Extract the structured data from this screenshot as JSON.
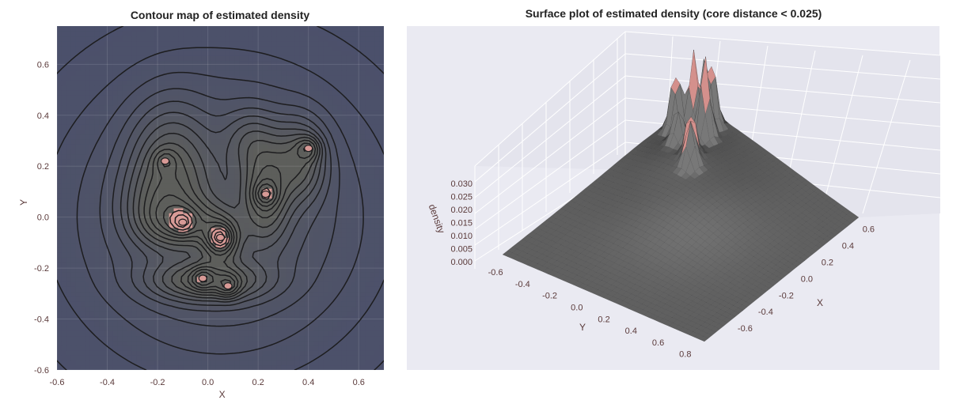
{
  "chart_data": [
    {
      "type": "contour",
      "title": "Contour map of estimated density",
      "xlabel": "X",
      "ylabel": "Y",
      "xlim": [
        -0.6,
        0.7
      ],
      "ylim": [
        -0.6,
        0.75
      ],
      "xticks": [
        "-0.6",
        "-0.4",
        "-0.2",
        "0.0",
        "0.2",
        "0.4",
        "0.6"
      ],
      "xtick_values": [
        -0.6,
        -0.4,
        -0.2,
        0.0,
        0.2,
        0.4,
        0.6
      ],
      "yticks": [
        "-0.6",
        "-0.4",
        "-0.2",
        "0.0",
        "0.2",
        "0.4",
        "0.6"
      ],
      "ytick_values": [
        -0.6,
        -0.4,
        -0.2,
        0.0,
        0.2,
        0.4,
        0.6
      ],
      "grid": true,
      "colors": {
        "background": "#4b506b",
        "core": "#5d5e5b",
        "peak": "#d89a96",
        "line": "#1d1d1f"
      },
      "density_peaks": [
        {
          "x": -0.17,
          "y": 0.22,
          "density": 0.018
        },
        {
          "x": -0.1,
          "y": -0.02,
          "density": 0.027
        },
        {
          "x": 0.05,
          "y": -0.08,
          "density": 0.03
        },
        {
          "x": -0.02,
          "y": -0.24,
          "density": 0.028
        },
        {
          "x": 0.08,
          "y": -0.27,
          "density": 0.027
        },
        {
          "x": 0.23,
          "y": 0.09,
          "density": 0.029
        },
        {
          "x": 0.4,
          "y": 0.27,
          "density": 0.028
        }
      ]
    },
    {
      "type": "surface",
      "title": "Surface plot of estimated density (core distance < 0.025)",
      "xlabel": "X",
      "ylabel": "Y",
      "zlabel": "density",
      "xticks": [
        "-0.6",
        "-0.4",
        "-0.2",
        "0.0",
        "0.2",
        "0.4",
        "0.6"
      ],
      "xtick_values": [
        -0.6,
        -0.4,
        -0.2,
        0.0,
        0.2,
        0.4,
        0.6
      ],
      "yticks": [
        "-0.6",
        "-0.4",
        "-0.2",
        "0.0",
        "0.2",
        "0.4",
        "0.6",
        "0.8"
      ],
      "ytick_values": [
        -0.6,
        -0.4,
        -0.2,
        0.0,
        0.2,
        0.4,
        0.6,
        0.8
      ],
      "zticks": [
        "0.000",
        "0.005",
        "0.010",
        "0.015",
        "0.020",
        "0.025",
        "0.030"
      ],
      "ztick_values": [
        0.0,
        0.005,
        0.01,
        0.015,
        0.02,
        0.025,
        0.03
      ],
      "colors": {
        "surface": "#5e5e5e",
        "peak": "#d4908c",
        "pane": "#eaeaf2"
      }
    }
  ]
}
